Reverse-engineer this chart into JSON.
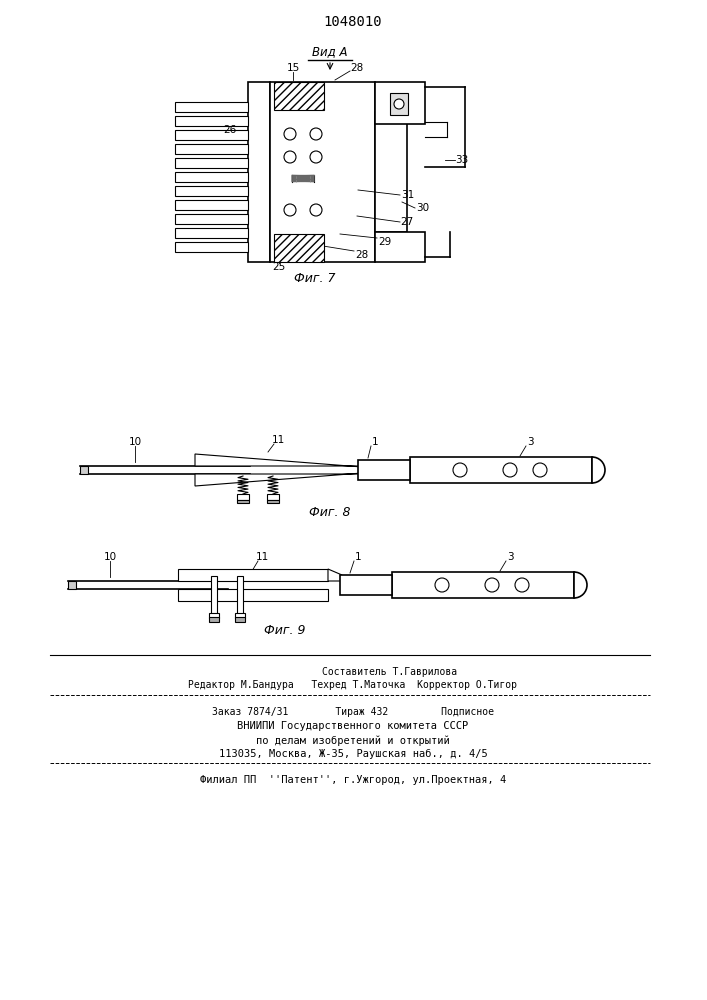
{
  "patent_number": "1048010",
  "title_view": "Вид А",
  "fig7_label": "Фиг. 7",
  "fig8_label": "Фиг. 8",
  "fig9_label": "Фиг. 9",
  "footer_lines": [
    "Составитель Т.Гаврилова",
    "Редактор М.Бандура   Техред Т.Маточка  Корректор О.Тигор",
    "Заказ 7874/31        Тираж 432         Подписное",
    "ВНИИПИ Государственного комитета СССР",
    "по делам изобретений и открытий",
    "113035, Москва, Ж-35, Раушская наб., д. 4/5",
    "Филиал ПП  ''Патент'', г.Ужгород, ул.Проектная, 4"
  ],
  "line_color": "#000000",
  "bg_color": "#ffffff"
}
